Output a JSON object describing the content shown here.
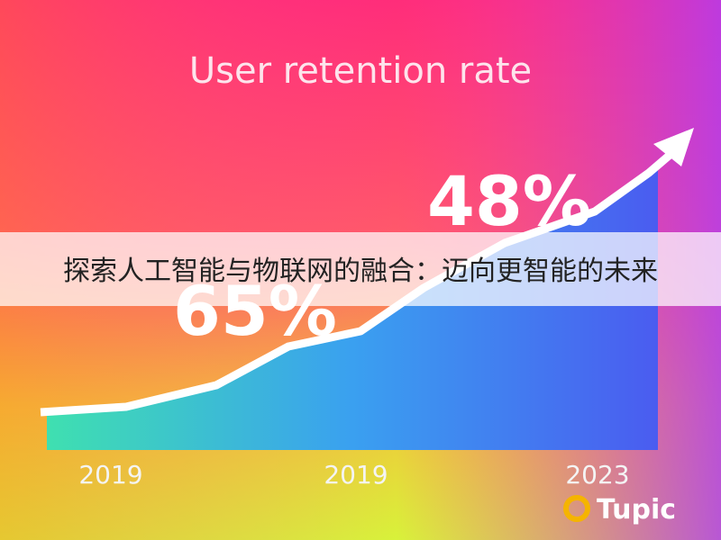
{
  "title": "User retention rate",
  "highlights": [
    "48%",
    "65%"
  ],
  "x_labels": [
    "2019",
    "2019",
    "2023"
  ],
  "banner": "探索人工智能与物联网的融合：迈向更智能的未来",
  "watermark": "Tupic"
}
